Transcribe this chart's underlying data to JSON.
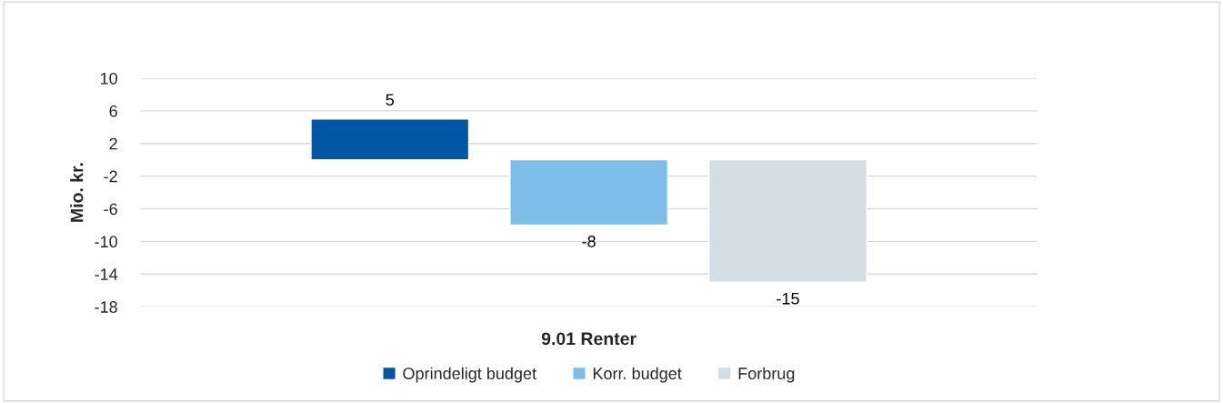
{
  "chart_data": {
    "type": "bar",
    "ylabel": "Mio. kr.",
    "categories": [
      "9.01 Renter"
    ],
    "series": [
      {
        "name": "Oprindeligt budget",
        "color": "#0055a5",
        "values": [
          5
        ]
      },
      {
        "name": "Korr. budget",
        "color": "#7dbde8",
        "values": [
          -8
        ]
      },
      {
        "name": "Forbrug",
        "color": "#d3dde3",
        "values": [
          -15
        ]
      }
    ],
    "ylim": [
      -18,
      10
    ],
    "yticks": [
      -18,
      -14,
      -10,
      -6,
      -2,
      2,
      6,
      10
    ],
    "grid": "y",
    "legend": "bottom",
    "data_labels": true
  }
}
